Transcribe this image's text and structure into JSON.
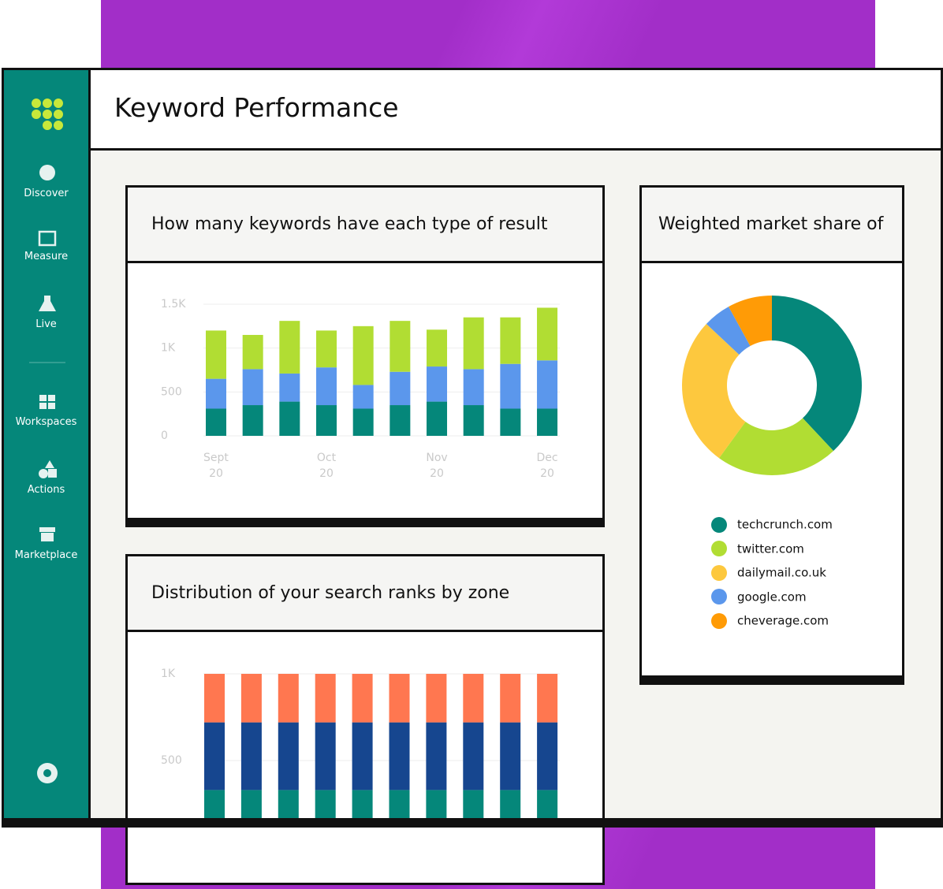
{
  "header": {
    "title": "Keyword Performance"
  },
  "sidebar": {
    "items": [
      "Discover",
      "Measure",
      "Live",
      "Workspaces",
      "Actions",
      "Marketplace"
    ]
  },
  "chart_data": [
    {
      "type": "bar",
      "stacked": true,
      "title": "How many keywords have each type of result",
      "categories": [
        "Sept 20",
        null,
        null,
        "Oct 20",
        null,
        null,
        "Nov 20",
        null,
        null,
        "Dec 20"
      ],
      "series": [
        {
          "color": "#05877a",
          "values": [
            310,
            350,
            390,
            350,
            310,
            350,
            390,
            350,
            310,
            310
          ]
        },
        {
          "color": "#5b97ec",
          "values": [
            340,
            410,
            320,
            430,
            270,
            380,
            400,
            410,
            510,
            550
          ]
        },
        {
          "color": "#b1dd33",
          "values": [
            550,
            390,
            600,
            420,
            670,
            580,
            420,
            590,
            530,
            600
          ]
        }
      ],
      "ylim": [
        0,
        1500
      ],
      "yticks": [
        0,
        500,
        {
          "value": 1000,
          "label": "1K"
        },
        {
          "value": 1500,
          "label": "1.5K"
        }
      ],
      "grid": true
    },
    {
      "type": "bar",
      "stacked": true,
      "title": "Distribution of your search ranks by zone",
      "series": [
        {
          "color": "#05877a",
          "values": [
            330,
            330,
            330,
            330,
            330,
            330,
            330,
            330,
            330,
            330
          ]
        },
        {
          "color": "#16468f",
          "values": [
            390,
            390,
            390,
            390,
            390,
            390,
            390,
            390,
            390,
            390
          ]
        },
        {
          "color": "#ff7750",
          "values": [
            280,
            280,
            280,
            280,
            280,
            280,
            280,
            280,
            280,
            280
          ]
        }
      ],
      "ylim": [
        0,
        1000
      ],
      "yticks": [
        500,
        {
          "value": 1000,
          "label": "1K"
        }
      ],
      "grid": true
    },
    {
      "type": "donut",
      "title": "Weighted market share of",
      "categories": [
        "techcrunch.com",
        "twitter.com",
        "dailymail.co.uk",
        "google.com",
        "cheverage.com"
      ],
      "values": [
        38,
        22,
        27,
        5,
        8
      ],
      "colors": [
        "#05877a",
        "#b1dd33",
        "#fdc83e",
        "#5b97ec",
        "#ff9b06"
      ]
    }
  ]
}
